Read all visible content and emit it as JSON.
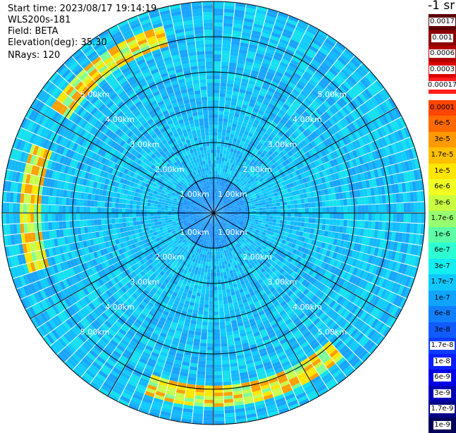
{
  "info": {
    "start_time": "Start time: 2023/08/17 19:14:19",
    "instrument": "WLS200s-181",
    "field": "Field: BETA",
    "elevation": "Elevation(deg): 35.30",
    "nrays": "NRays: 120"
  },
  "plot": {
    "type": "polar_ppi",
    "rays": 120,
    "range_gates": 60,
    "max_range_km": 6,
    "rings_km": [
      1,
      2,
      3,
      4,
      5,
      6
    ],
    "ring_labels": [
      "1.00km",
      "2.00km",
      "3.00km",
      "4.00km",
      "5.00km"
    ],
    "spoke_angles_deg": [
      0,
      30,
      60,
      90,
      120,
      150,
      180,
      210,
      240,
      270,
      300,
      330
    ],
    "grid_color": "#000000"
  },
  "colorbar": {
    "unit": "-1 sr",
    "levels": [
      {
        "label": "0.0017",
        "color": "#5c0000"
      },
      {
        "label": "0.001",
        "color": "#8b0000"
      },
      {
        "label": "0.0006",
        "color": "#b20000"
      },
      {
        "label": "0.0003",
        "color": "#dd0000"
      },
      {
        "label": "0.00017",
        "color": "#ff1e1e"
      },
      {
        "label": "0.0001",
        "color": "#ff4500"
      },
      {
        "label": "6e-5",
        "color": "#ff6a00"
      },
      {
        "label": "3e-5",
        "color": "#ff9900"
      },
      {
        "label": "1.7e-5",
        "color": "#ffc000"
      },
      {
        "label": "1e-5",
        "color": "#ffe600"
      },
      {
        "label": "6e-6",
        "color": "#f0ff20"
      },
      {
        "label": "3e-6",
        "color": "#c8ff40"
      },
      {
        "label": "1.7e-6",
        "color": "#96ff70"
      },
      {
        "label": "1e-6",
        "color": "#5cffa4"
      },
      {
        "label": "6e-7",
        "color": "#2cffd2"
      },
      {
        "label": "3e-7",
        "color": "#14eef0"
      },
      {
        "label": "1.7e-7",
        "color": "#10c8ff"
      },
      {
        "label": "1e-7",
        "color": "#10a4ff"
      },
      {
        "label": "6e-8",
        "color": "#1080ff"
      },
      {
        "label": "3e-8",
        "color": "#105cff"
      },
      {
        "label": "1.7e-8",
        "color": "#0a3cff"
      },
      {
        "label": "1e-8",
        "color": "#0a1eff"
      },
      {
        "label": "6e-9",
        "color": "#0000e6"
      },
      {
        "label": "3e-9",
        "color": "#0000b4"
      },
      {
        "label": "1.7e-9",
        "color": "#000088"
      },
      {
        "label": "1e-9",
        "color": "#00005a"
      }
    ]
  }
}
